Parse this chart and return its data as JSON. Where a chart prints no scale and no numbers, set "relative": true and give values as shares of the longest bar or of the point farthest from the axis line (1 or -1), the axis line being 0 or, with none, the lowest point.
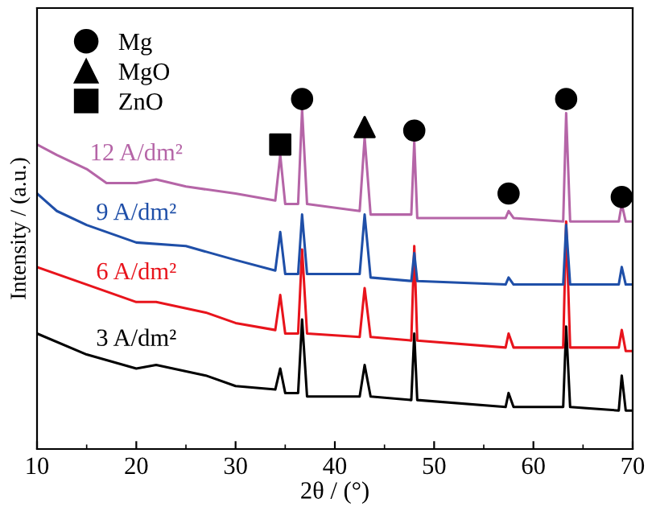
{
  "chart_data": {
    "type": "line",
    "relative": true,
    "xlabel": "2θ / (°)",
    "ylabel": "Intensity / (a.u.)",
    "xlim": [
      10,
      70
    ],
    "xticks": [
      10,
      20,
      30,
      40,
      50,
      60,
      70
    ],
    "legend": "top left",
    "tick_labels": "x",
    "series": [
      {
        "name": "3 A/dm²",
        "color": "#000000",
        "x": [
          10,
          15,
          20,
          22,
          27,
          30,
          34,
          34.5,
          35,
          36.3,
          36.7,
          37.2,
          42.5,
          43,
          43.6,
          47.7,
          48,
          48.3,
          57.2,
          57.5,
          58,
          63,
          63.3,
          63.7,
          68.6,
          68.9,
          69.3,
          70
        ],
        "values": [
          0.33,
          0.27,
          0.23,
          0.24,
          0.21,
          0.18,
          0.17,
          0.23,
          0.16,
          0.16,
          0.37,
          0.15,
          0.15,
          0.24,
          0.15,
          0.14,
          0.33,
          0.14,
          0.12,
          0.16,
          0.12,
          0.12,
          0.35,
          0.12,
          0.11,
          0.21,
          0.11,
          0.11
        ]
      },
      {
        "name": "6 A/dm²",
        "color": "#e8141c",
        "x": [
          10,
          15,
          20,
          22,
          27,
          30,
          34,
          34.5,
          35,
          36.3,
          36.7,
          37.2,
          42.5,
          43,
          43.6,
          47.7,
          48,
          48.3,
          57.2,
          57.5,
          58,
          63,
          63.3,
          63.7,
          68.6,
          68.9,
          69.3,
          70
        ],
        "values": [
          0.52,
          0.47,
          0.42,
          0.42,
          0.39,
          0.36,
          0.34,
          0.44,
          0.33,
          0.33,
          0.57,
          0.33,
          0.32,
          0.46,
          0.32,
          0.31,
          0.58,
          0.31,
          0.29,
          0.33,
          0.29,
          0.29,
          0.65,
          0.29,
          0.29,
          0.34,
          0.28,
          0.28
        ]
      },
      {
        "name": "9 A/dm²",
        "color": "#1f4fa8",
        "x": [
          10,
          12,
          15,
          20,
          25,
          30,
          34,
          34.5,
          35,
          36.3,
          36.7,
          37.2,
          42.5,
          43,
          43.6,
          47.7,
          48,
          48.3,
          57.2,
          57.5,
          58,
          63,
          63.3,
          63.7,
          68.6,
          68.9,
          69.3,
          70
        ],
        "values": [
          0.73,
          0.68,
          0.64,
          0.59,
          0.58,
          0.54,
          0.51,
          0.62,
          0.5,
          0.5,
          0.67,
          0.5,
          0.5,
          0.67,
          0.49,
          0.48,
          0.56,
          0.48,
          0.47,
          0.49,
          0.47,
          0.47,
          0.64,
          0.47,
          0.47,
          0.52,
          0.47,
          0.47
        ]
      },
      {
        "name": "12 A/dm²",
        "color": "#b565a7",
        "x": [
          10,
          12,
          15,
          17,
          20,
          22,
          25,
          30,
          34,
          34.5,
          35,
          36.3,
          36.7,
          37.2,
          42.5,
          43,
          43.6,
          47.7,
          48,
          48.3,
          57.2,
          57.5,
          58,
          63,
          63.3,
          63.7,
          68.6,
          68.9,
          69.3,
          70
        ],
        "values": [
          0.87,
          0.84,
          0.8,
          0.76,
          0.76,
          0.77,
          0.75,
          0.73,
          0.71,
          0.84,
          0.7,
          0.7,
          0.97,
          0.7,
          0.68,
          0.89,
          0.67,
          0.67,
          0.88,
          0.66,
          0.66,
          0.68,
          0.66,
          0.65,
          0.96,
          0.65,
          0.65,
          0.7,
          0.65,
          0.65
        ]
      },
      {
        "name": "Mg",
        "type": "scatter",
        "marker": "circle",
        "color": "#000000",
        "x": [
          36.7,
          48,
          57.5,
          63.3,
          68.9
        ],
        "values": [
          1,
          0.91,
          0.73,
          1,
          0.72
        ]
      },
      {
        "name": "MgO",
        "type": "scatter",
        "marker": "triangle",
        "color": "#000000",
        "x": [
          43
        ],
        "values": [
          0.92
        ]
      },
      {
        "name": "ZnO",
        "type": "scatter",
        "marker": "square",
        "color": "#000000",
        "x": [
          34.5
        ],
        "values": [
          0.87
        ]
      }
    ]
  }
}
